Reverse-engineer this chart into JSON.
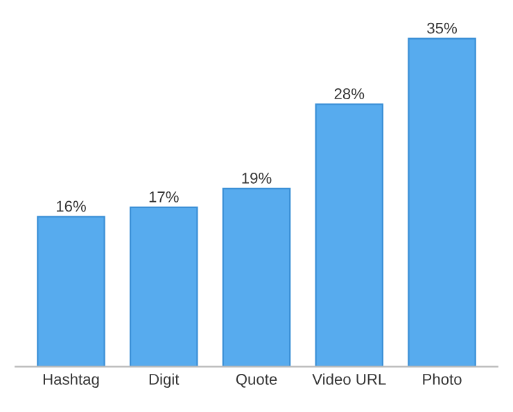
{
  "chart_data": {
    "type": "bar",
    "categories": [
      "Hashtag",
      "Digit",
      "Quote",
      "Video URL",
      "Photo"
    ],
    "values": [
      16,
      17,
      19,
      28,
      35
    ],
    "value_labels": [
      "16%",
      "17%",
      "19%",
      "28%",
      "35%"
    ],
    "color": "#57abee",
    "tick_labels": "x",
    "grid": false,
    "legend": false
  }
}
